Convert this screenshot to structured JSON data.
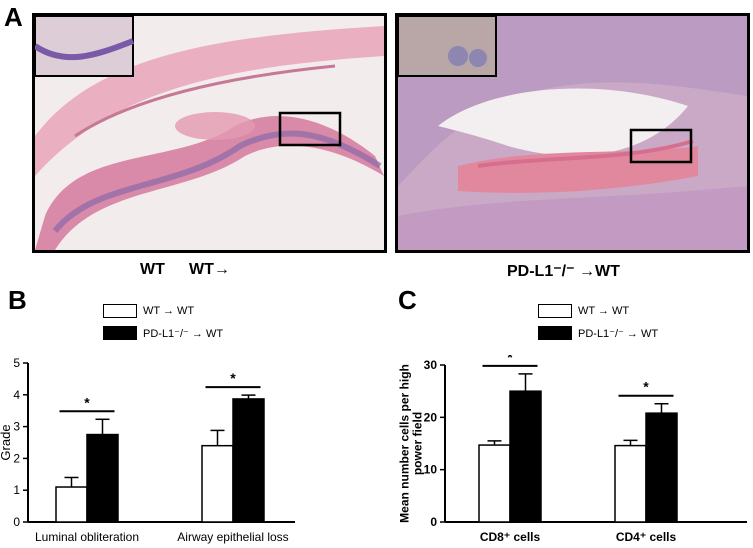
{
  "panels": {
    "a": {
      "letter": "A",
      "caption_left_1": "WT",
      "caption_left_2": "WT→",
      "caption_right": "PD-L1⁻/⁻ →WT"
    },
    "b": {
      "letter": "B"
    },
    "c": {
      "letter": "C"
    }
  },
  "legend": {
    "wt": "WT → WT",
    "pdl1": "PD-L1⁻/⁻ → WT"
  },
  "colors": {
    "wt_bar": "#ffffff",
    "pdl1_bar": "#000000",
    "tissue_pink": "#e8a0b4",
    "nuclei_purple": "#7a5aa8"
  },
  "chart_data": [
    {
      "type": "bar",
      "ylabel": "Grade",
      "xlabel": "",
      "ylim": [
        0,
        5
      ],
      "yticks": [
        "0",
        "1",
        "2",
        "3",
        "4",
        "5"
      ],
      "categories": [
        "Luminal obliteration",
        "Airway epithelial loss"
      ],
      "series": [
        {
          "name": "WT → WT",
          "values": [
            1.1,
            2.4
          ],
          "errors": [
            0.3,
            0.48
          ]
        },
        {
          "name": "PD-L1⁻/⁻ → WT",
          "values": [
            2.75,
            3.87
          ],
          "errors": [
            0.48,
            0.12
          ]
        }
      ],
      "significance": [
        "*",
        "*"
      ]
    },
    {
      "type": "bar",
      "ylabel": "Mean number cells per high power field",
      "xlabel": "",
      "ylim": [
        0,
        30
      ],
      "yticks": [
        "0",
        "10",
        "20",
        "30"
      ],
      "categories": [
        "CD8⁺ cells",
        "CD4⁺ cells"
      ],
      "series": [
        {
          "name": "WT → WT",
          "values": [
            14.7,
            14.6
          ],
          "errors": [
            0.8,
            1.0
          ]
        },
        {
          "name": "PD-L1⁻/⁻ → WT",
          "values": [
            25.0,
            20.8
          ],
          "errors": [
            3.3,
            1.8
          ]
        }
      ],
      "significance": [
        "*",
        "*"
      ]
    }
  ]
}
